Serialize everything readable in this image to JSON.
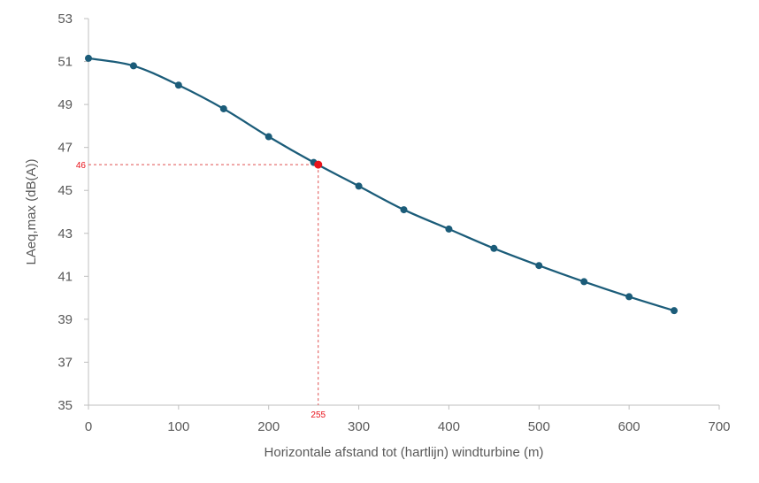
{
  "chart_data": {
    "type": "line",
    "title": "",
    "xlabel": "Horizontale afstand tot (hartlijn) windturbine (m)",
    "ylabel": "LAeq,max (dB(A))",
    "xlim": [
      0,
      700
    ],
    "ylim": [
      35,
      53
    ],
    "x_ticks": [
      0,
      100,
      200,
      300,
      400,
      500,
      600,
      700
    ],
    "y_ticks": [
      35,
      37,
      39,
      41,
      43,
      45,
      47,
      49,
      51,
      53
    ],
    "grid": false,
    "legend": "none",
    "series": [
      {
        "name": "LAeq,max",
        "color": "#1B5C79",
        "x": [
          0,
          50,
          100,
          150,
          200,
          250,
          300,
          350,
          400,
          450,
          500,
          550,
          600,
          650
        ],
        "y": [
          51.15,
          50.8,
          49.9,
          48.8,
          47.5,
          46.3,
          45.2,
          44.1,
          43.2,
          42.3,
          41.5,
          40.75,
          40.05,
          39.4
        ]
      }
    ],
    "annotation": {
      "x": 255,
      "y": 46.2,
      "x_label": "255",
      "y_label": "46",
      "color": "#E8131B",
      "line_color": "#E05050"
    },
    "axis_color": "#BFBFBF"
  }
}
